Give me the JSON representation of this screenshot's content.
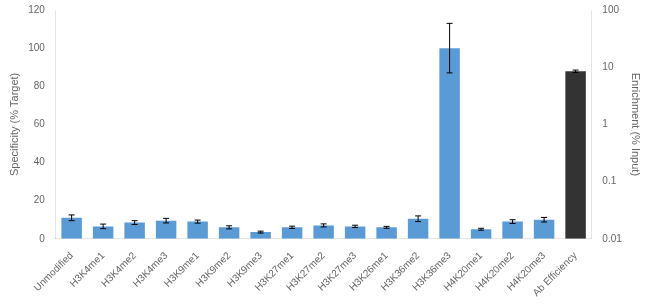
{
  "chart_data": {
    "type": "bar",
    "categories": [
      "Unmodified",
      "H3K4me1",
      "H3K4me2",
      "H3K4me3",
      "H3K9me1",
      "H3K9me2",
      "H3K9me3",
      "H3K27me1",
      "H3K27me2",
      "H3K27me3",
      "H3K26me1",
      "H3K36me2",
      "H3K36me3",
      "H4K20me1",
      "H4K20me2",
      "H4K20me3",
      "Ab Efficiency"
    ],
    "series": [
      {
        "color": "#5B9BD5",
        "values": [
          11.0,
          6.5,
          8.5,
          9.5,
          9.0,
          6.0,
          3.5,
          6.0,
          7.0,
          6.5,
          6.0,
          10.5,
          100.0,
          5.0,
          9.0,
          10.0,
          null
        ],
        "errors": [
          1.5,
          1.2,
          1.0,
          1.2,
          0.8,
          0.8,
          0.5,
          0.6,
          0.8,
          0.6,
          0.5,
          1.5,
          13.0,
          0.5,
          1.0,
          1.2,
          null
        ]
      },
      {
        "color": "#333333",
        "axis": "y2",
        "values": [
          null,
          null,
          null,
          null,
          null,
          null,
          null,
          null,
          null,
          null,
          null,
          null,
          null,
          null,
          null,
          null,
          8.5
        ],
        "errors": [
          null,
          null,
          null,
          null,
          null,
          null,
          null,
          null,
          null,
          null,
          null,
          null,
          null,
          null,
          null,
          null,
          0.4
        ]
      }
    ],
    "ylabel": "Specificity (% Target)",
    "y2label": "Enrichment (% Input)",
    "ylim": [
      0,
      120
    ],
    "yticks": [
      0,
      20,
      40,
      60,
      80,
      100,
      120
    ],
    "y2lim": [
      0.01,
      100
    ],
    "y2ticks": [
      0.01,
      0.1,
      1,
      10,
      100
    ],
    "log": "y2",
    "grid": false
  }
}
